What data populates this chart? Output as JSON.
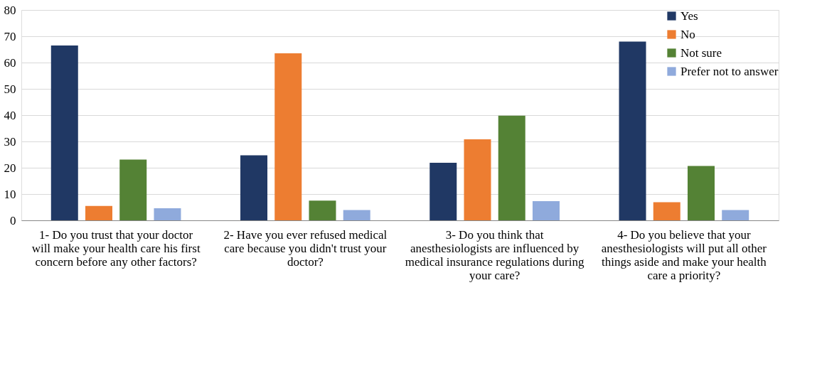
{
  "chart_data": {
    "type": "bar",
    "categories": [
      "1- Do you trust that your doctor will make your health care his first concern before any other factors?",
      "2- Have you ever refused medical care because you didn't trust your doctor?",
      "3- Do you think that anesthesiologists are influenced by medical insurance regulations during your care?",
      "4- Do you believe that your anesthesiologists will put all other things aside and make your health care a priority?"
    ],
    "series": [
      {
        "name": "Yes",
        "color": "#203864",
        "values": [
          66.5,
          24.7,
          21.9,
          68.0
        ]
      },
      {
        "name": "No",
        "color": "#ed7d31",
        "values": [
          5.5,
          63.5,
          30.8,
          6.9
        ]
      },
      {
        "name": "Not sure",
        "color": "#548235",
        "values": [
          23.1,
          7.5,
          39.8,
          20.7
        ]
      },
      {
        "name": "Prefer not to answer",
        "color": "#8faadc",
        "values": [
          4.6,
          3.9,
          7.3,
          3.9
        ]
      }
    ],
    "ylim": [
      0,
      80
    ],
    "yticks": [
      0,
      10,
      20,
      30,
      40,
      50,
      60,
      70,
      80
    ],
    "grid": "y",
    "legend": "top right"
  }
}
